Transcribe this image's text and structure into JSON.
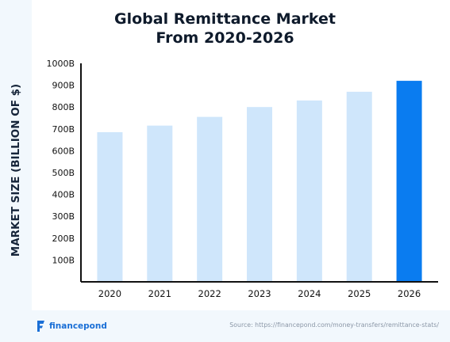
{
  "brand": {
    "name": "financepond",
    "icon": "financepond-logo-icon"
  },
  "source": "Source: https://financepond.com/money-transfers/remittance-stats/",
  "colors": {
    "bar": "#cfe6fb",
    "highlight": "#0a7cf0",
    "axis": "#111111"
  },
  "chart_data": {
    "type": "bar",
    "title_lines": [
      "Global Remittance Market",
      "From 2020-2026"
    ],
    "xlabel": "",
    "ylabel": "MARKET SIZE (BILLION OF $)",
    "categories": [
      "2020",
      "2021",
      "2022",
      "2023",
      "2024",
      "2025",
      "2026"
    ],
    "values": [
      685,
      715,
      755,
      800,
      830,
      870,
      920
    ],
    "highlight_index": 6,
    "ylim": [
      0,
      1000
    ],
    "yticks": [
      100,
      200,
      300,
      400,
      500,
      600,
      700,
      800,
      900,
      1000
    ],
    "ytick_labels": [
      "100B",
      "200B",
      "300B",
      "400B",
      "500B",
      "600B",
      "700B",
      "800B",
      "900B",
      "1000B"
    ],
    "grid": false,
    "legend": "none"
  }
}
